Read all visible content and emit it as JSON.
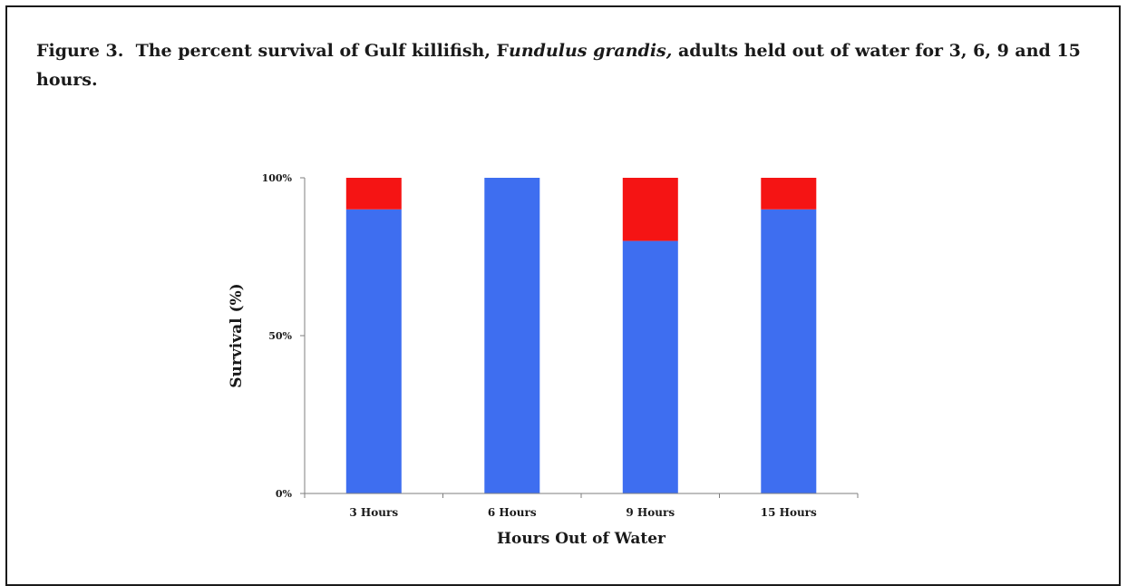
{
  "caption": {
    "label": "Figure 3.",
    "part1": "The percent survival of  Gulf killifish, F",
    "species": "undulus grandis,",
    "part2": " adults held out of  water for 3, 6, 9 and 15 hours."
  },
  "chart_data": {
    "type": "bar",
    "stacked": true,
    "categories": [
      "3 Hours",
      "6 Hours",
      "9 Hours",
      "15 Hours"
    ],
    "series": [
      {
        "values": [
          90,
          100,
          80,
          90
        ],
        "color": "#3e6ef0"
      },
      {
        "values": [
          10,
          0,
          20,
          10
        ],
        "color": "#f51414"
      }
    ],
    "xlabel": "Hours Out of Water",
    "ylabel": "Survival (%)",
    "ylim": [
      0,
      100
    ],
    "yticks": [
      0,
      50,
      100
    ],
    "ytick_labels": [
      "0%",
      "50%",
      "100%"
    ],
    "grid": false,
    "legend": "none"
  }
}
